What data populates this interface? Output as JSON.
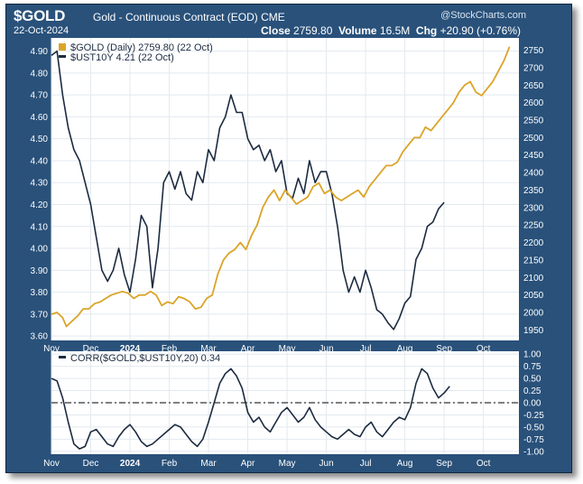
{
  "header": {
    "symbol": "$GOLD",
    "description": "Gold - Continuous Contract (EOD)",
    "exchange": "CME",
    "date": "22-Oct-2024",
    "watermark": "@StockCharts.com",
    "close_label": "Close",
    "close_value": "2759.80",
    "volume_label": "Volume",
    "volume_value": "16.5M",
    "chg_label": "Chg",
    "chg_value": "+20.90 (+0.76%)"
  },
  "colors": {
    "frame": "#29517a",
    "gold": "#dba428",
    "ust": "#1c2b40",
    "corr": "#1c2b40",
    "grid": "#e3e9ef"
  },
  "chart_data": [
    {
      "type": "line",
      "legend_placement": "top-left",
      "legend": [
        "$GOLD (Daily) 2759.80 (22 Oct)",
        "$UST10Y 4.21 (22 Oct)"
      ],
      "x_tick_labels": [
        "Nov",
        "Dec",
        "2024",
        "Feb",
        "Mar",
        "Apr",
        "May",
        "Jun",
        "Jul",
        "Aug",
        "Sep",
        "Oct"
      ],
      "left_axis": {
        "ticks": [
          "4.90",
          "4.80",
          "4.70",
          "4.60",
          "4.50",
          "4.40",
          "4.30",
          "4.20",
          "4.10",
          "4.00",
          "3.90",
          "3.80",
          "3.70",
          "3.60"
        ],
        "range": [
          3.58,
          4.96
        ]
      },
      "right_axis": {
        "ticks": [
          "2750",
          "2700",
          "2650",
          "2600",
          "2550",
          "2500",
          "2450",
          "2400",
          "2350",
          "2300",
          "2250",
          "2200",
          "2150",
          "2100",
          "2050",
          "2000",
          "1950"
        ],
        "range": [
          1920,
          2785
        ]
      },
      "grid": true,
      "series": [
        {
          "name": "$GOLD",
          "axis": "right",
          "values": [
            [
              0,
              1995
            ],
            [
              3,
              2000
            ],
            [
              6,
              1985
            ],
            [
              8,
              1960
            ],
            [
              11,
              1975
            ],
            [
              14,
              1990
            ],
            [
              17,
              2010
            ],
            [
              20,
              2010
            ],
            [
              23,
              2025
            ],
            [
              26,
              2030
            ],
            [
              29,
              2040
            ],
            [
              32,
              2050
            ],
            [
              35,
              2055
            ],
            [
              38,
              2060
            ],
            [
              41,
              2055
            ],
            [
              44,
              2040
            ],
            [
              47,
              2050
            ],
            [
              50,
              2050
            ],
            [
              53,
              2060
            ],
            [
              56,
              2050
            ],
            [
              59,
              2020
            ],
            [
              62,
              2030
            ],
            [
              65,
              2025
            ],
            [
              68,
              2045
            ],
            [
              71,
              2040
            ],
            [
              74,
              2030
            ],
            [
              77,
              2010
            ],
            [
              80,
              2015
            ],
            [
              83,
              2040
            ],
            [
              86,
              2050
            ],
            [
              89,
              2110
            ],
            [
              92,
              2150
            ],
            [
              95,
              2170
            ],
            [
              98,
              2180
            ],
            [
              101,
              2200
            ],
            [
              104,
              2180
            ],
            [
              107,
              2220
            ],
            [
              110,
              2250
            ],
            [
              113,
              2300
            ],
            [
              116,
              2330
            ],
            [
              119,
              2350
            ],
            [
              122,
              2320
            ],
            [
              125,
              2350
            ],
            [
              128,
              2330
            ],
            [
              131,
              2310
            ],
            [
              134,
              2320
            ],
            [
              137,
              2330
            ],
            [
              140,
              2360
            ],
            [
              143,
              2370
            ],
            [
              146,
              2340
            ],
            [
              149,
              2350
            ],
            [
              152,
              2330
            ],
            [
              155,
              2320
            ],
            [
              158,
              2330
            ],
            [
              161,
              2340
            ],
            [
              164,
              2350
            ],
            [
              167,
              2330
            ],
            [
              170,
              2360
            ],
            [
              173,
              2380
            ],
            [
              176,
              2400
            ],
            [
              179,
              2420
            ],
            [
              182,
              2420
            ],
            [
              185,
              2430
            ],
            [
              188,
              2460
            ],
            [
              191,
              2480
            ],
            [
              194,
              2500
            ],
            [
              197,
              2500
            ],
            [
              200,
              2530
            ],
            [
              203,
              2520
            ],
            [
              206,
              2540
            ],
            [
              209,
              2560
            ],
            [
              212,
              2580
            ],
            [
              215,
              2600
            ],
            [
              218,
              2630
            ],
            [
              221,
              2650
            ],
            [
              224,
              2660
            ],
            [
              227,
              2630
            ],
            [
              230,
              2620
            ],
            [
              233,
              2640
            ],
            [
              236,
              2660
            ],
            [
              239,
              2690
            ],
            [
              242,
              2720
            ],
            [
              245,
              2759.8
            ]
          ]
        },
        {
          "name": "$UST10Y",
          "axis": "left",
          "values": [
            [
              0,
              4.88
            ],
            [
              3,
              4.9
            ],
            [
              6,
              4.7
            ],
            [
              9,
              4.55
            ],
            [
              12,
              4.45
            ],
            [
              15,
              4.4
            ],
            [
              18,
              4.3
            ],
            [
              21,
              4.2
            ],
            [
              24,
              4.05
            ],
            [
              27,
              3.9
            ],
            [
              30,
              3.85
            ],
            [
              33,
              3.9
            ],
            [
              36,
              4.0
            ],
            [
              39,
              3.88
            ],
            [
              42,
              3.8
            ],
            [
              45,
              3.95
            ],
            [
              48,
              4.15
            ],
            [
              51,
              4.1
            ],
            [
              54,
              3.82
            ],
            [
              57,
              4.0
            ],
            [
              60,
              4.3
            ],
            [
              63,
              4.35
            ],
            [
              66,
              4.27
            ],
            [
              69,
              4.35
            ],
            [
              72,
              4.25
            ],
            [
              75,
              4.22
            ],
            [
              78,
              4.35
            ],
            [
              81,
              4.3
            ],
            [
              84,
              4.45
            ],
            [
              87,
              4.4
            ],
            [
              90,
              4.55
            ],
            [
              93,
              4.6
            ],
            [
              96,
              4.7
            ],
            [
              99,
              4.62
            ],
            [
              102,
              4.62
            ],
            [
              105,
              4.5
            ],
            [
              108,
              4.45
            ],
            [
              111,
              4.47
            ],
            [
              114,
              4.4
            ],
            [
              117,
              4.45
            ],
            [
              120,
              4.35
            ],
            [
              123,
              4.4
            ],
            [
              126,
              4.25
            ],
            [
              129,
              4.23
            ],
            [
              132,
              4.32
            ],
            [
              135,
              4.25
            ],
            [
              138,
              4.4
            ],
            [
              141,
              4.3
            ],
            [
              144,
              4.35
            ],
            [
              147,
              4.35
            ],
            [
              150,
              4.25
            ],
            [
              153,
              4.1
            ],
            [
              156,
              3.9
            ],
            [
              159,
              3.8
            ],
            [
              162,
              3.87
            ],
            [
              165,
              3.8
            ],
            [
              168,
              3.9
            ],
            [
              171,
              3.82
            ],
            [
              174,
              3.72
            ],
            [
              177,
              3.7
            ],
            [
              180,
              3.66
            ],
            [
              183,
              3.63
            ],
            [
              186,
              3.68
            ],
            [
              189,
              3.75
            ],
            [
              192,
              3.78
            ],
            [
              195,
              3.95
            ],
            [
              198,
              4.0
            ],
            [
              201,
              4.1
            ],
            [
              204,
              4.12
            ],
            [
              207,
              4.18
            ],
            [
              210,
              4.21
            ]
          ]
        }
      ]
    },
    {
      "type": "line",
      "legend_placement": "top-left",
      "legend": [
        "CORR($GOLD,$UST10Y,20) 0.34"
      ],
      "x_tick_labels": [
        "Nov",
        "Dec",
        "2024",
        "Feb",
        "Mar",
        "Apr",
        "May",
        "Jun",
        "Jul",
        "Aug",
        "Sep",
        "Oct"
      ],
      "right_axis": {
        "ticks": [
          "1.00",
          "0.75",
          "0.50",
          "0.25",
          "0.00",
          "-0.25",
          "-0.50",
          "-0.75",
          "-1.00"
        ],
        "range": [
          -1.06,
          1.06
        ]
      },
      "reference_line": 0.0,
      "series": [
        {
          "name": "CORR($GOLD,$UST10Y,20)",
          "values": [
            [
              0,
              0.5
            ],
            [
              3,
              0.45
            ],
            [
              6,
              0.1
            ],
            [
              9,
              -0.4
            ],
            [
              12,
              -0.85
            ],
            [
              15,
              -0.95
            ],
            [
              18,
              -0.9
            ],
            [
              21,
              -0.6
            ],
            [
              24,
              -0.55
            ],
            [
              27,
              -0.7
            ],
            [
              30,
              -0.85
            ],
            [
              33,
              -0.9
            ],
            [
              36,
              -0.7
            ],
            [
              39,
              -0.55
            ],
            [
              42,
              -0.45
            ],
            [
              45,
              -0.6
            ],
            [
              48,
              -0.8
            ],
            [
              51,
              -0.9
            ],
            [
              54,
              -0.85
            ],
            [
              57,
              -0.75
            ],
            [
              60,
              -0.65
            ],
            [
              63,
              -0.55
            ],
            [
              66,
              -0.45
            ],
            [
              69,
              -0.5
            ],
            [
              72,
              -0.65
            ],
            [
              75,
              -0.8
            ],
            [
              78,
              -0.9
            ],
            [
              81,
              -0.75
            ],
            [
              84,
              -0.4
            ],
            [
              87,
              0.0
            ],
            [
              90,
              0.4
            ],
            [
              93,
              0.6
            ],
            [
              96,
              0.7
            ],
            [
              99,
              0.55
            ],
            [
              102,
              0.3
            ],
            [
              105,
              -0.2
            ],
            [
              108,
              -0.4
            ],
            [
              111,
              -0.3
            ],
            [
              114,
              -0.5
            ],
            [
              117,
              -0.6
            ],
            [
              120,
              -0.4
            ],
            [
              123,
              -0.2
            ],
            [
              126,
              -0.1
            ],
            [
              129,
              -0.25
            ],
            [
              132,
              -0.4
            ],
            [
              135,
              -0.3
            ],
            [
              138,
              -0.1
            ],
            [
              141,
              -0.35
            ],
            [
              144,
              -0.5
            ],
            [
              147,
              -0.6
            ],
            [
              150,
              -0.7
            ],
            [
              153,
              -0.75
            ],
            [
              156,
              -0.65
            ],
            [
              159,
              -0.55
            ],
            [
              162,
              -0.65
            ],
            [
              165,
              -0.7
            ],
            [
              168,
              -0.5
            ],
            [
              171,
              -0.4
            ],
            [
              174,
              -0.6
            ],
            [
              177,
              -0.7
            ],
            [
              180,
              -0.55
            ],
            [
              183,
              -0.4
            ],
            [
              186,
              -0.3
            ],
            [
              189,
              -0.35
            ],
            [
              192,
              -0.1
            ],
            [
              195,
              0.4
            ],
            [
              198,
              0.7
            ],
            [
              201,
              0.6
            ],
            [
              204,
              0.3
            ],
            [
              207,
              0.1
            ],
            [
              210,
              0.2
            ],
            [
              213,
              0.34
            ]
          ]
        }
      ]
    }
  ]
}
